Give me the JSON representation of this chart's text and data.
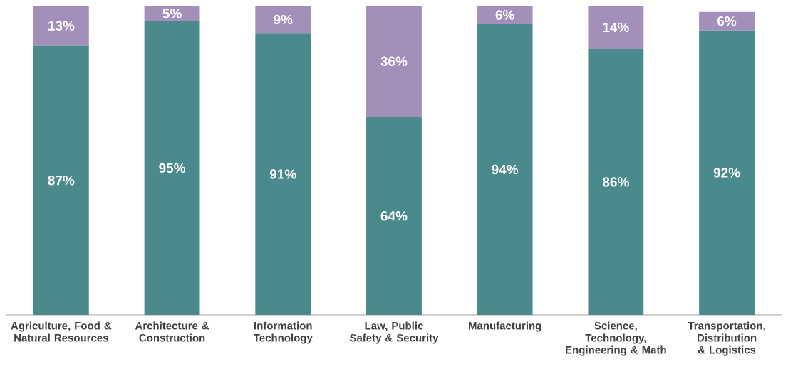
{
  "chart_data": {
    "type": "bar",
    "stacked": true,
    "categories": [
      "Agriculture, Food & Natural Resources",
      "Architecture & Construction",
      "Information Technology",
      "Law, Public Safety & Security",
      "Manufacturing",
      "Science, Technology, Engineering & Math",
      "Transportation, Distribution & Logistics"
    ],
    "series": [
      {
        "color": "#4a8a8c",
        "values": [
          87,
          95,
          91,
          64,
          94,
          86,
          92
        ],
        "value_labels": [
          "87%",
          "95%",
          "91%",
          "64%",
          "94%",
          "86%",
          "92%"
        ]
      },
      {
        "color": "#a48fba",
        "values": [
          13,
          5,
          9,
          36,
          6,
          14,
          6
        ],
        "value_labels": [
          "13%",
          "5%",
          "9%",
          "36%",
          "6%",
          "14%",
          "6%"
        ]
      }
    ]
  }
}
